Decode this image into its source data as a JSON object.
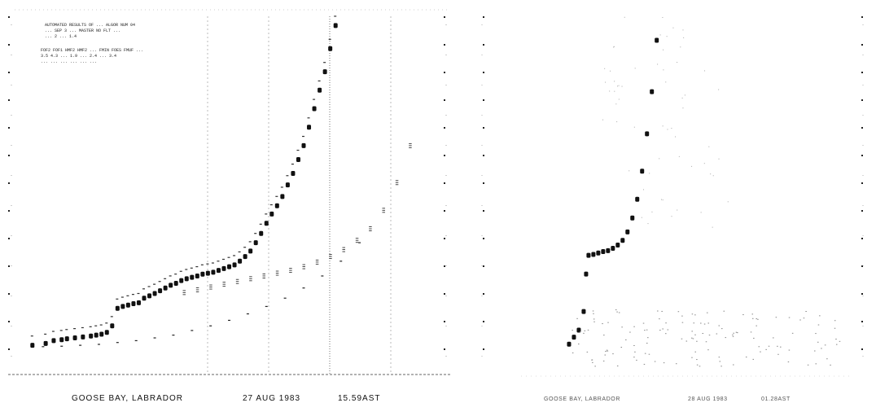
{
  "left_panel": {
    "station": "GOOSE BAY, LABRADOR",
    "date": "27 AUG 1983",
    "time": "15.59AST",
    "header_lines": [
      "AUTOMATED RESULTS OF ...  ALGOR NUM 04",
      "...  SEP 3  ...  MASTER NO  FLT   ...",
      "...  2  ...  1.4",
      "FOF2  FOF1  HMF2  HMF2  ...  FMIN  FOES  FMUF  ...",
      "3.5  4.3  ...  1.9  ...  2.4  ...  3.4",
      "...  ...  ...  ...  ...  ..."
    ]
  },
  "right_panel": {
    "station": "GOOSE BAY, LABRADOR",
    "date": "28 AUG 1983",
    "time": "01.28AST"
  },
  "chart_data": [
    {
      "type": "scatter",
      "title": "",
      "xlabel": "",
      "ylabel": "",
      "series": [
        {
          "x": [
            0.8,
            1.3,
            1.6,
            1.9,
            2.1,
            2.4,
            2.7,
            3.0,
            3.2,
            3.4,
            3.6,
            3.8,
            4.0,
            4.2,
            4.4,
            4.6,
            4.8,
            5.0,
            5.2,
            5.4,
            5.6,
            5.8,
            6.0,
            6.2,
            6.4,
            6.6,
            6.8,
            7.0,
            7.2,
            7.4,
            7.6,
            7.8,
            8.0,
            8.2,
            8.4,
            8.6,
            8.8,
            9.0,
            9.2,
            9.4,
            9.6,
            9.8,
            10.0,
            10.2,
            10.4,
            10.6,
            10.8,
            11.0,
            11.2,
            11.4,
            11.6,
            11.8,
            12.0,
            12.2
          ],
          "y": [
            108,
            112,
            118,
            120,
            122,
            124,
            126,
            128,
            130,
            132,
            136,
            150,
            188,
            192,
            195,
            198,
            200,
            210,
            215,
            220,
            226,
            232,
            238,
            242,
            248,
            252,
            255,
            258,
            262,
            264,
            266,
            270,
            274,
            278,
            282,
            290,
            300,
            312,
            330,
            350,
            372,
            392,
            410,
            430,
            455,
            480,
            510,
            540,
            580,
            620,
            660,
            700,
            750,
            800
          ]
        },
        {
          "x": [
            1.2,
            1.9,
            2.6,
            3.3,
            4.0,
            4.7,
            5.4,
            6.1,
            6.8,
            7.5,
            8.2,
            8.9,
            9.6,
            10.3,
            11.0,
            11.7,
            12.4,
            13.1
          ],
          "y": [
            105,
            106,
            108,
            110,
            114,
            118,
            124,
            130,
            140,
            150,
            162,
            176,
            192,
            210,
            232,
            258,
            290,
            330
          ]
        },
        {
          "x": [
            6.5,
            7.0,
            7.5,
            8.0,
            8.5,
            9.0,
            9.5,
            10.0,
            10.5,
            11.0,
            11.5,
            12.0,
            12.5,
            13.0,
            13.5,
            14.0,
            14.5,
            15.0
          ],
          "y": [
            222,
            228,
            234,
            240,
            246,
            252,
            258,
            264,
            270,
            278,
            288,
            300,
            315,
            335,
            360,
            400,
            460,
            540
          ]
        }
      ]
    },
    {
      "type": "scatter",
      "title": "",
      "xlabel": "",
      "ylabel": "",
      "series": [
        {
          "x": [
            0.6,
            0.8,
            1.0,
            1.2,
            1.3,
            1.4,
            1.6,
            1.8,
            2.0,
            2.2,
            2.4,
            2.6,
            2.8,
            3.0,
            3.2,
            3.4,
            3.6,
            3.8,
            4.0,
            4.2
          ],
          "y": [
            110,
            125,
            140,
            180,
            260,
            300,
            302,
            305,
            308,
            310,
            315,
            322,
            332,
            350,
            380,
            420,
            480,
            560,
            650,
            760
          ]
        }
      ]
    }
  ]
}
